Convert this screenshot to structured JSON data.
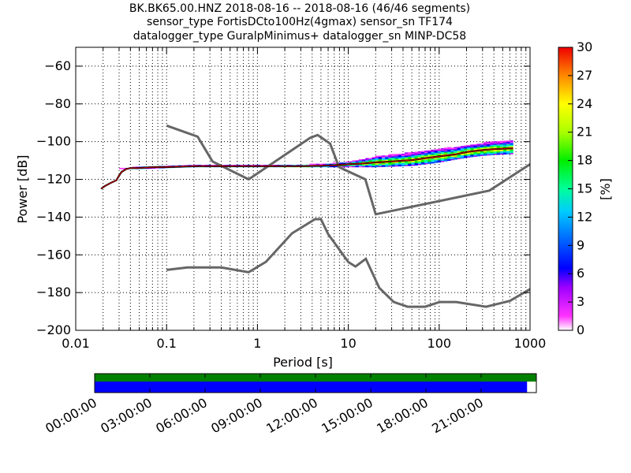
{
  "header": {
    "line1": "BK.BK65.00.HNZ   2018-08-16 -- 2018-08-16  (46/46 segments)",
    "line2": "sensor_type FortisDCto100Hz(4gmax) sensor_sn TF174",
    "line3": "datalogger_type GuralpMinimus+ datalogger_sn MINP-DC58"
  },
  "chart_data": [
    {
      "type": "heatmap",
      "xlabel": "Period [s]",
      "ylabel": "Power [dB]",
      "x_scale": "log",
      "xlim": [
        0.01,
        1000
      ],
      "ylim": [
        -200,
        -50
      ],
      "x_ticks": [
        0.01,
        0.1,
        1,
        10,
        100,
        1000
      ],
      "x_tick_labels": [
        "0.01",
        "0.1",
        "1",
        "10",
        "100",
        "1000"
      ],
      "y_ticks": [
        -200,
        -180,
        -160,
        -140,
        -120,
        -100,
        -80,
        -60
      ],
      "y_tick_labels": [
        "−200",
        "−180",
        "−160",
        "−140",
        "−120",
        "−100",
        "−80",
        "−60"
      ],
      "grid": true,
      "colorbar": {
        "label": "[%]",
        "min": 0,
        "max": 30,
        "ticks": [
          0,
          3,
          6,
          9,
          12,
          15,
          18,
          21,
          24,
          27,
          30
        ],
        "tick_labels": [
          "0",
          "3",
          "6",
          "9",
          "12",
          "15",
          "18",
          "21",
          "24",
          "27",
          "30"
        ],
        "colormap": "pqlx"
      },
      "psd_mode": {
        "x": [
          0.019,
          0.021,
          0.024,
          0.028,
          0.03,
          0.032,
          0.036,
          0.04,
          0.05,
          0.07,
          0.1,
          0.2,
          0.3,
          0.5,
          1,
          2,
          3,
          5,
          7,
          10,
          15,
          20,
          30,
          50,
          70,
          100,
          150,
          200,
          300,
          400,
          650
        ],
        "y": [
          -125,
          -123.5,
          -122,
          -120.5,
          -118,
          -116,
          -114.5,
          -114,
          -114,
          -113.5,
          -113.5,
          -113,
          -113,
          -113,
          -113,
          -113,
          -113,
          -112.8,
          -112.5,
          -112,
          -111.5,
          -111,
          -110.5,
          -109.8,
          -108.8,
          -107.8,
          -106.8,
          -105.5,
          -104.5,
          -104,
          -103.5
        ]
      },
      "nhnm": {
        "x": [
          0.1,
          0.22,
          0.32,
          0.8,
          3.8,
          4.6,
          6.3,
          7.9,
          15.4,
          20,
          354.8,
          1000
        ],
        "y": [
          -91.5,
          -97.4,
          -110.5,
          -120,
          -98,
          -96.5,
          -101,
          -113.5,
          -120,
          -138.5,
          -126,
          -112
        ]
      },
      "nlnm": {
        "x": [
          0.1,
          0.17,
          0.4,
          0.8,
          1.24,
          2.4,
          4.3,
          5,
          6,
          10,
          12,
          15.6,
          21.9,
          31.6,
          45,
          70,
          101,
          154,
          328,
          600,
          1000
        ],
        "y": [
          -168,
          -166.7,
          -166.7,
          -169.2,
          -163.7,
          -148.6,
          -141.1,
          -141.1,
          -149,
          -163.8,
          -166.2,
          -162.1,
          -177.5,
          -185,
          -187.5,
          -187.5,
          -185,
          -185,
          -187.5,
          -184.4,
          -178.2
        ]
      },
      "spread_envelope": {
        "x": [
          0.03,
          0.04,
          0.05,
          0.1,
          0.2,
          0.3,
          0.5,
          1,
          3,
          5,
          8,
          10,
          15,
          20,
          30,
          50,
          70,
          100,
          150,
          200,
          300,
          400,
          650
        ],
        "upper": [
          -114,
          -114,
          -113.5,
          -113,
          -112.5,
          -112.5,
          -112.5,
          -112.5,
          -112.5,
          -112,
          -111.5,
          -111,
          -109.5,
          -108,
          -107,
          -106,
          -105,
          -104,
          -103,
          -102,
          -101,
          -100,
          -99.5
        ],
        "lower": [
          -114.5,
          -114.5,
          -114.5,
          -114,
          -113.5,
          -113.5,
          -113.5,
          -113.5,
          -113.5,
          -113.5,
          -113.5,
          -113.5,
          -113.5,
          -113.5,
          -113.2,
          -112.8,
          -112,
          -111,
          -109.5,
          -108.5,
          -107.5,
          -107,
          -106.5
        ]
      }
    },
    {
      "type": "timeline",
      "x_tick_labels": [
        "00:00:00",
        "03:00:00",
        "06:00:00",
        "09:00:00",
        "12:00:00",
        "15:00:00",
        "18:00:00",
        "21:00:00"
      ],
      "data_coverage": [
        0,
        1
      ],
      "psd_coverage": [
        0,
        0.979
      ],
      "data_color": "#008000",
      "psd_color": "#0000ff"
    }
  ]
}
